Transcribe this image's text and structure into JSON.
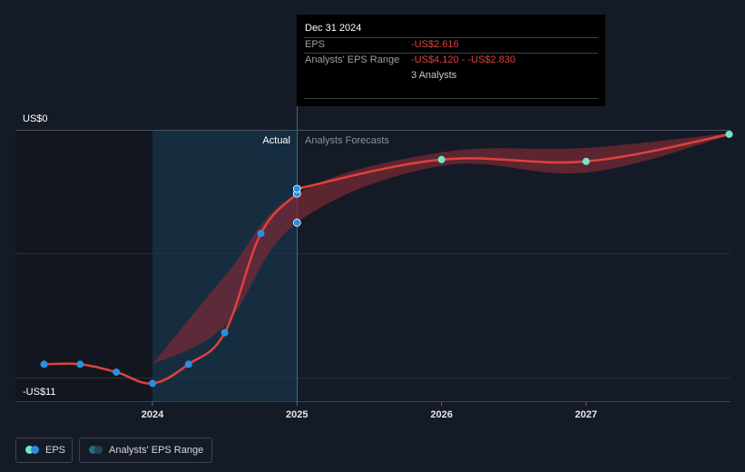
{
  "tooltip": {
    "date": "Dec 31 2024",
    "eps_label": "EPS",
    "eps_value": "-US$2.616",
    "range_label": "Analysts' EPS Range",
    "range_value": "-US$4.120 - -US$2.830",
    "analysts": "3 Analysts"
  },
  "legend": {
    "eps_label": "EPS",
    "range_label": "Analysts' EPS Range"
  },
  "colors": {
    "background": "#151b26",
    "eps_line": "#e0413d",
    "actual_dot": "#2b8fe0",
    "forecast_dot": "#6fe8c8",
    "range_fill": "#7a2a35",
    "actual_highlight": "#17344a"
  },
  "chart_data": {
    "type": "line",
    "title": "",
    "xlabel": "",
    "ylabel": "",
    "y_tick_labels": [
      {
        "value": 0,
        "label": "US$0"
      },
      {
        "value": -11,
        "label": "-US$11"
      }
    ],
    "x_tick_labels": [
      "2024",
      "2025",
      "2026",
      "2027"
    ],
    "x_ticks": [
      2024,
      2025,
      2026,
      2027
    ],
    "xlim": [
      2022.8,
      2027.99
    ],
    "ylim": [
      -12.04,
      0
    ],
    "section_labels": {
      "actual": "Actual",
      "forecast": "Analysts Forecasts"
    },
    "grid": true,
    "legend_position": "bottom-left",
    "series": [
      {
        "name": "EPS",
        "kind": "actual",
        "points": [
          {
            "x": 2023.25,
            "y": -10.4
          },
          {
            "x": 2023.5,
            "y": -10.4
          },
          {
            "x": 2023.75,
            "y": -10.75
          },
          {
            "x": 2024.0,
            "y": -11.25
          },
          {
            "x": 2024.25,
            "y": -10.4
          },
          {
            "x": 2024.5,
            "y": -9.0
          },
          {
            "x": 2024.75,
            "y": -4.6
          },
          {
            "x": 2025.0,
            "y": -2.83
          }
        ]
      },
      {
        "name": "EPS",
        "kind": "forecast",
        "points": [
          {
            "x": 2025.0,
            "y": -2.616
          },
          {
            "x": 2026.0,
            "y": -1.32
          },
          {
            "x": 2027.0,
            "y": -1.4
          },
          {
            "x": 2027.99,
            "y": -0.2
          }
        ]
      },
      {
        "name": "Analysts' EPS Range",
        "kind": "range",
        "points": [
          {
            "x": 2024.0,
            "low": -10.4,
            "high": -10.4
          },
          {
            "x": 2024.5,
            "low": -8.7,
            "high": -6.5
          },
          {
            "x": 2025.0,
            "low": -4.12,
            "high": -2.83
          },
          {
            "x": 2026.0,
            "low": -1.6,
            "high": -1.0
          },
          {
            "x": 2027.0,
            "low": -1.9,
            "high": -0.8
          },
          {
            "x": 2027.99,
            "low": -0.25,
            "high": -0.15
          }
        ]
      }
    ],
    "extra_points": [
      {
        "x": 2025.0,
        "y": -2.83,
        "kind": "actual"
      },
      {
        "x": 2025.0,
        "y": -4.12,
        "kind": "actual"
      }
    ]
  }
}
